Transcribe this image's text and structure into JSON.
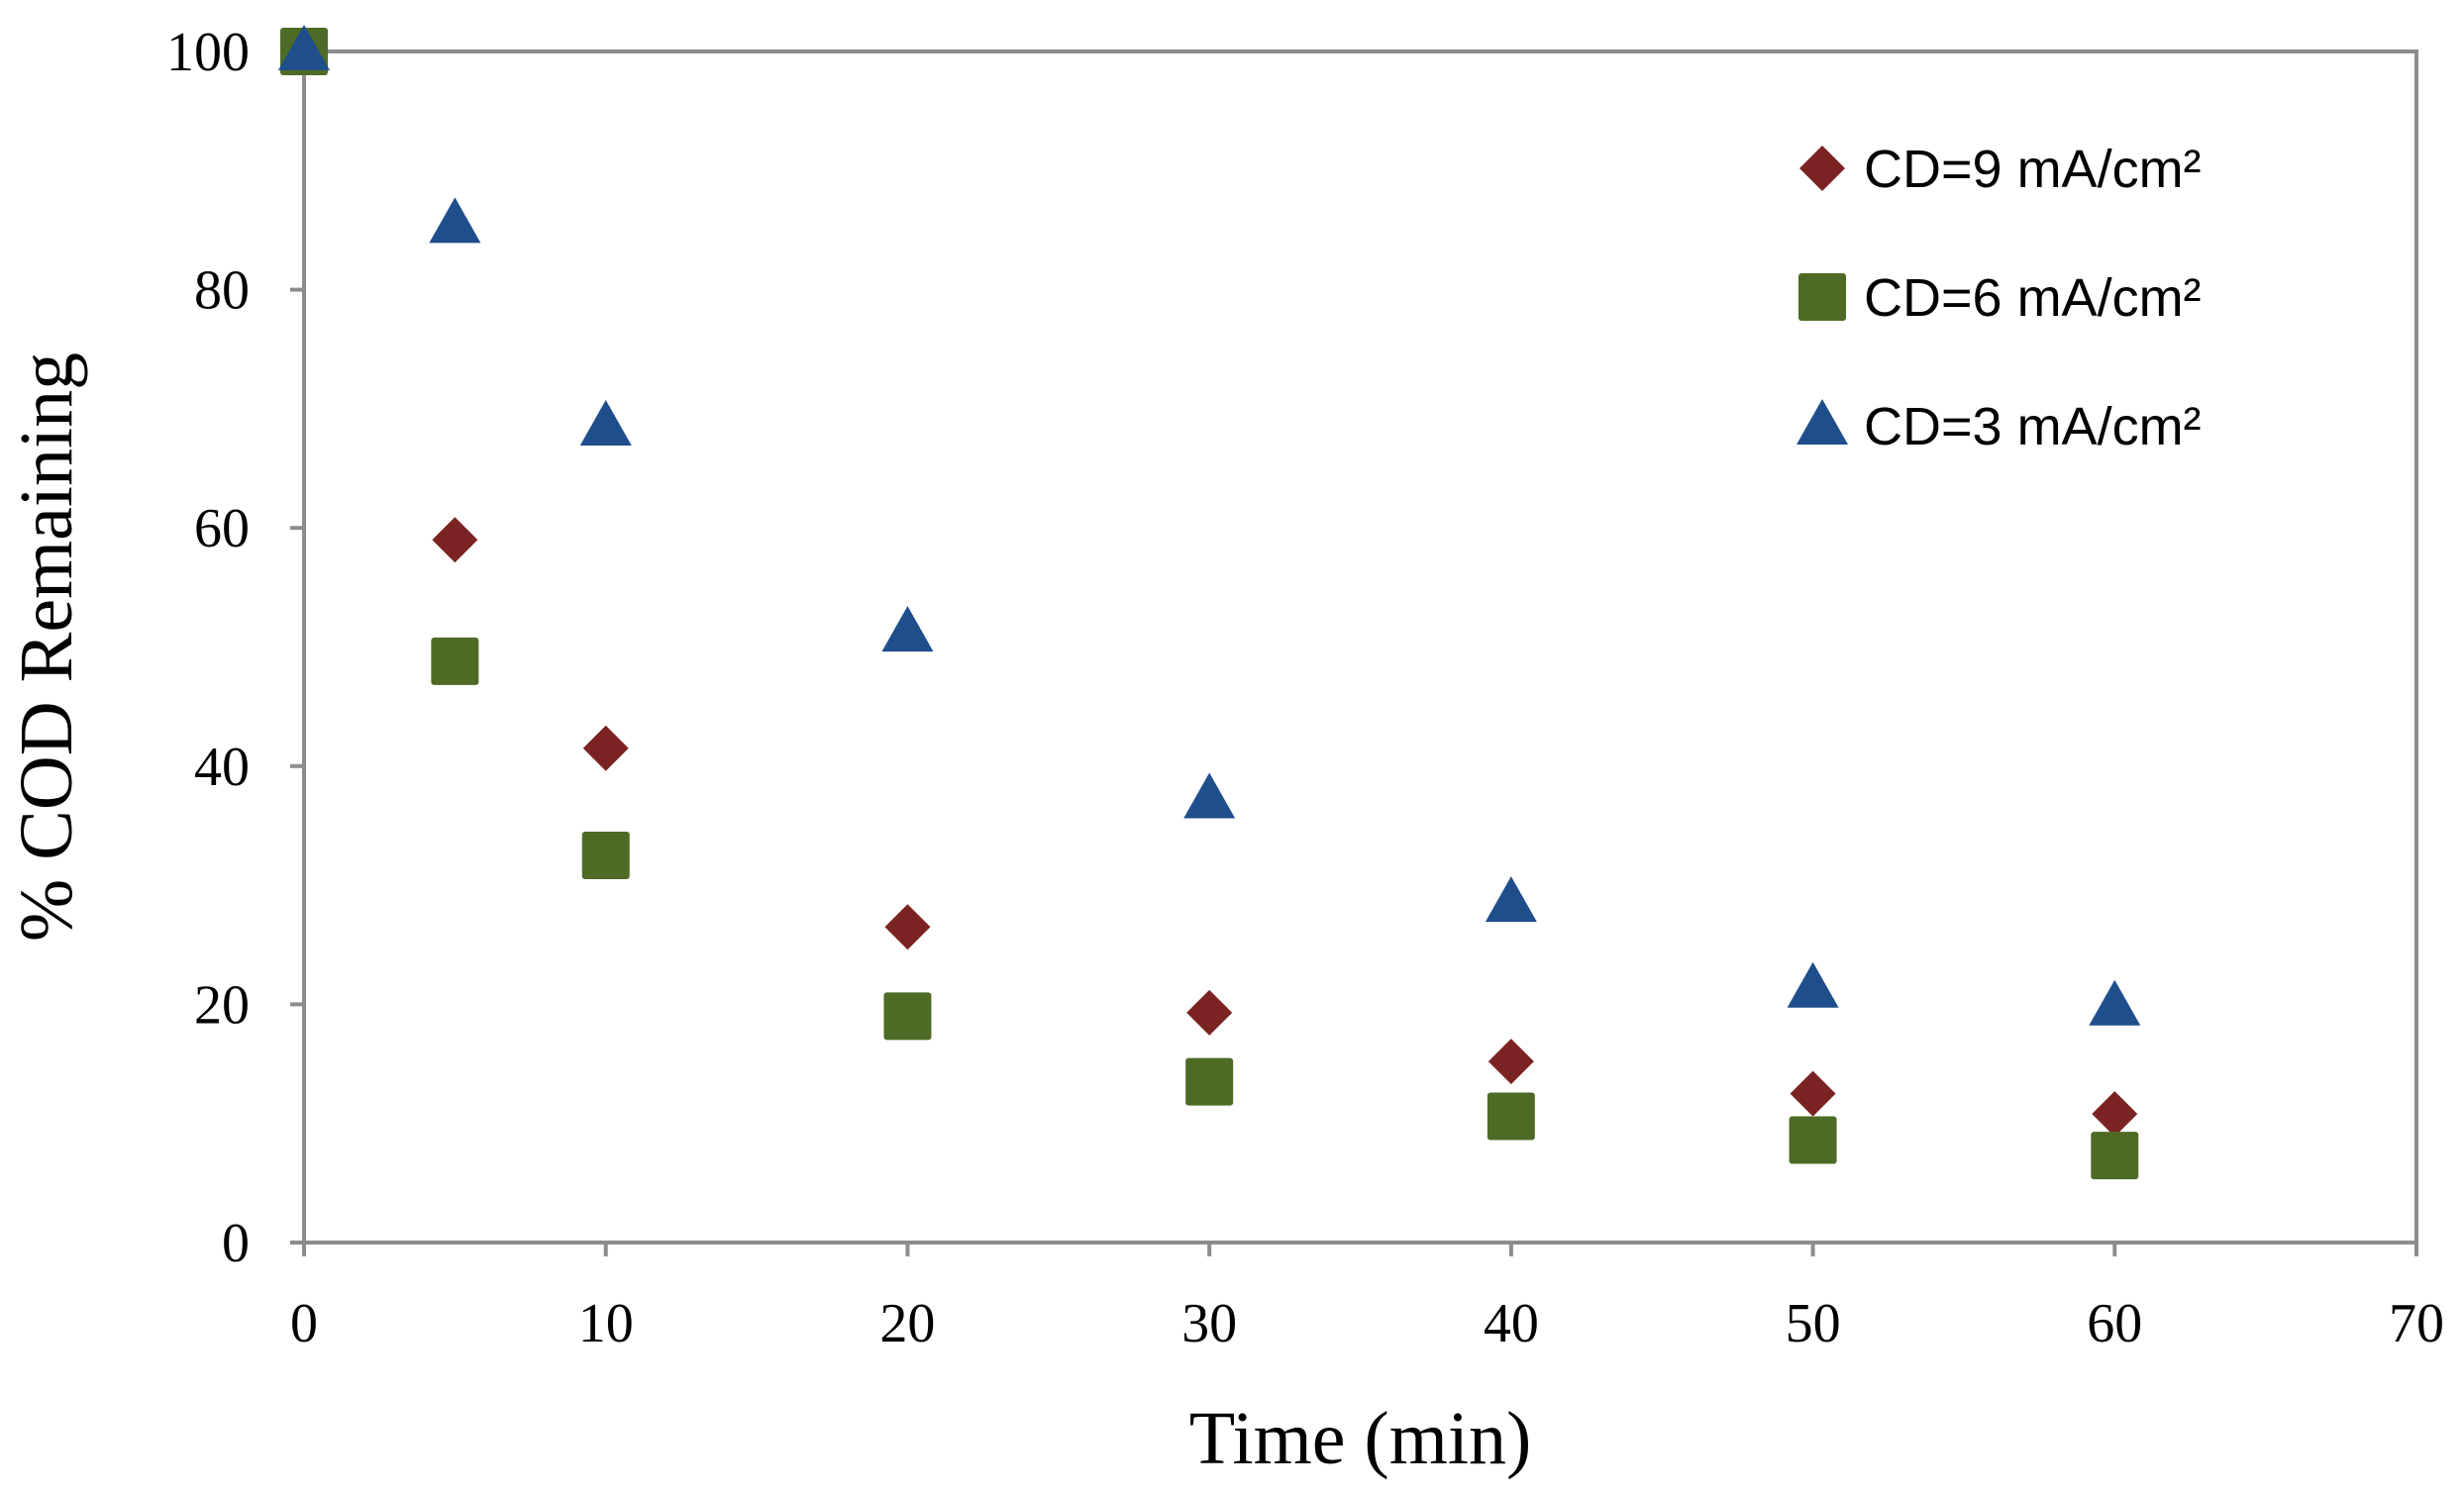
{
  "chart_data": {
    "type": "scatter",
    "title": "",
    "xlabel": "Time (min)",
    "ylabel": "% COD Remaining",
    "xlim": [
      0,
      70
    ],
    "ylim": [
      0,
      100
    ],
    "xticks": [
      0,
      10,
      20,
      30,
      40,
      50,
      60,
      70
    ],
    "yticks": [
      0,
      20,
      40,
      60,
      80,
      100
    ],
    "grid": false,
    "legend_position": "top-right",
    "series": [
      {
        "name": "CD=9 mA/cm²",
        "marker": "diamond",
        "color": "#7b2323",
        "x": [
          0,
          5,
          10,
          20,
          30,
          40,
          50,
          60
        ],
        "y": [
          100,
          59,
          41.5,
          26.5,
          19.3,
          15.2,
          12.5,
          10.8
        ]
      },
      {
        "name": "CD=6 mA/cm²",
        "marker": "square",
        "color": "#4e6b25",
        "x": [
          0,
          5,
          10,
          20,
          30,
          40,
          50,
          60
        ],
        "y": [
          100,
          48.8,
          32.5,
          19,
          13.5,
          10.6,
          8.6,
          7.3
        ]
      },
      {
        "name": "CD=3 mA/cm²",
        "marker": "triangle",
        "color": "#1f4e8c",
        "x": [
          0,
          5,
          10,
          20,
          30,
          40,
          50,
          60
        ],
        "y": [
          100,
          85.5,
          68.5,
          51.2,
          37.2,
          28.5,
          21.3,
          19.8
        ]
      }
    ]
  }
}
